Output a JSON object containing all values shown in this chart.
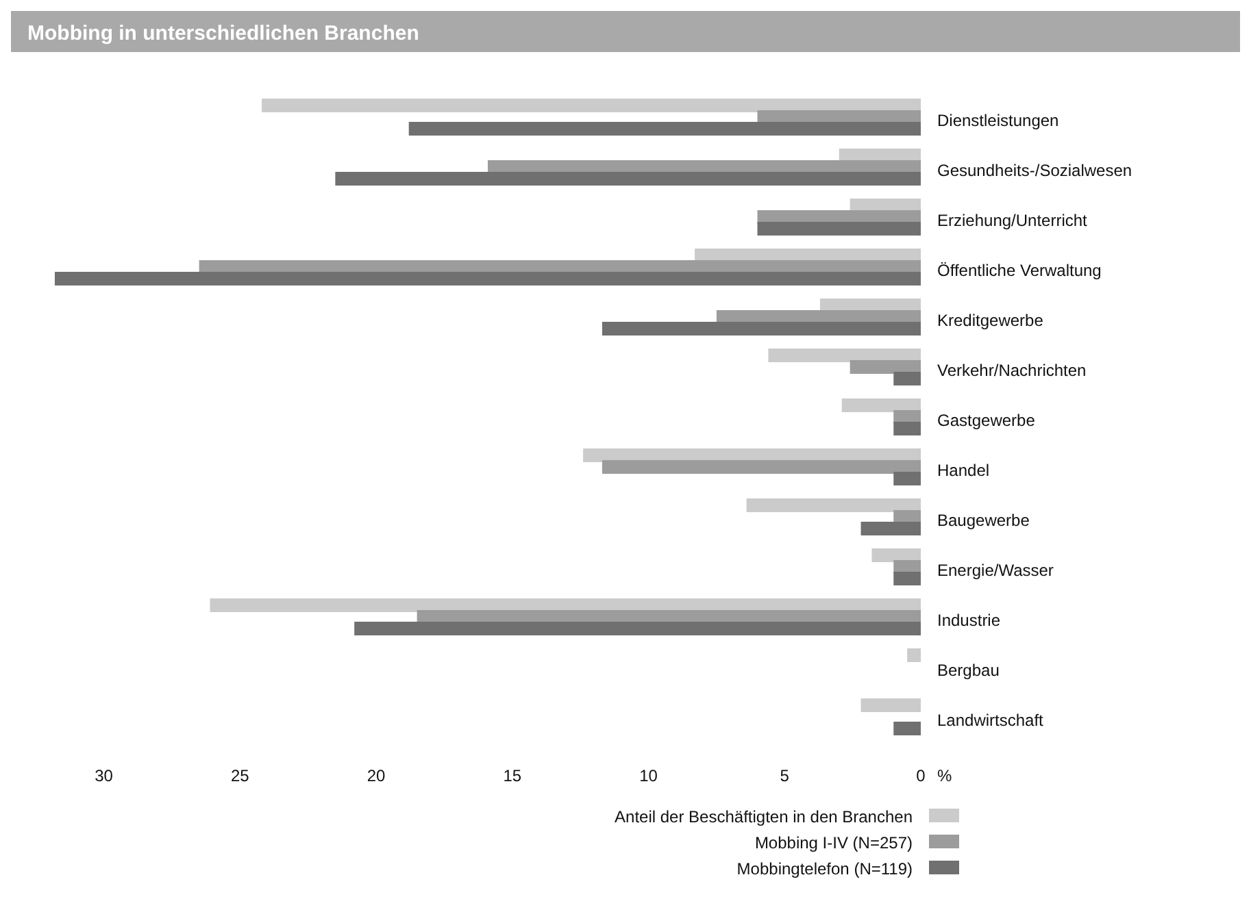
{
  "chart_data": {
    "type": "bar",
    "orientation": "horizontal",
    "title": "Mobbing in unterschiedlichen Branchen",
    "xlabel": "%",
    "categories": [
      "Dienstleistungen",
      "Gesundheits-/Sozialwesen",
      "Erziehung/Unterricht",
      "Öffentliche Verwaltung",
      "Kreditgewerbe",
      "Verkehr/Nachrichten",
      "Gastgewerbe",
      "Handel",
      "Baugewerbe",
      "Energie/Wasser",
      "Industrie",
      "Bergbau",
      "Landwirtschaft"
    ],
    "series": [
      {
        "name": "Anteil der Beschäftigten in den Branchen",
        "color": "#cbcbcb",
        "values": [
          24.2,
          3.0,
          2.6,
          8.3,
          3.7,
          5.6,
          2.9,
          12.4,
          6.4,
          1.8,
          26.1,
          0.5,
          2.2
        ]
      },
      {
        "name": "Mobbing I-IV (N=257)",
        "color": "#9c9c9c",
        "values": [
          6.0,
          15.9,
          6.0,
          26.5,
          7.5,
          2.6,
          1.0,
          11.7,
          1.0,
          1.0,
          18.5,
          0,
          0
        ]
      },
      {
        "name": "Mobbingtelefon (N=119)",
        "color": "#707070",
        "values": [
          18.8,
          21.5,
          6.0,
          31.8,
          11.7,
          1.0,
          1.0,
          1.0,
          2.2,
          1.0,
          20.8,
          0,
          1.0
        ]
      }
    ],
    "xlim": [
      32,
      0
    ],
    "xticks": [
      30,
      25,
      20,
      15,
      10,
      5,
      0
    ],
    "grid": false,
    "legend": "bottom"
  }
}
